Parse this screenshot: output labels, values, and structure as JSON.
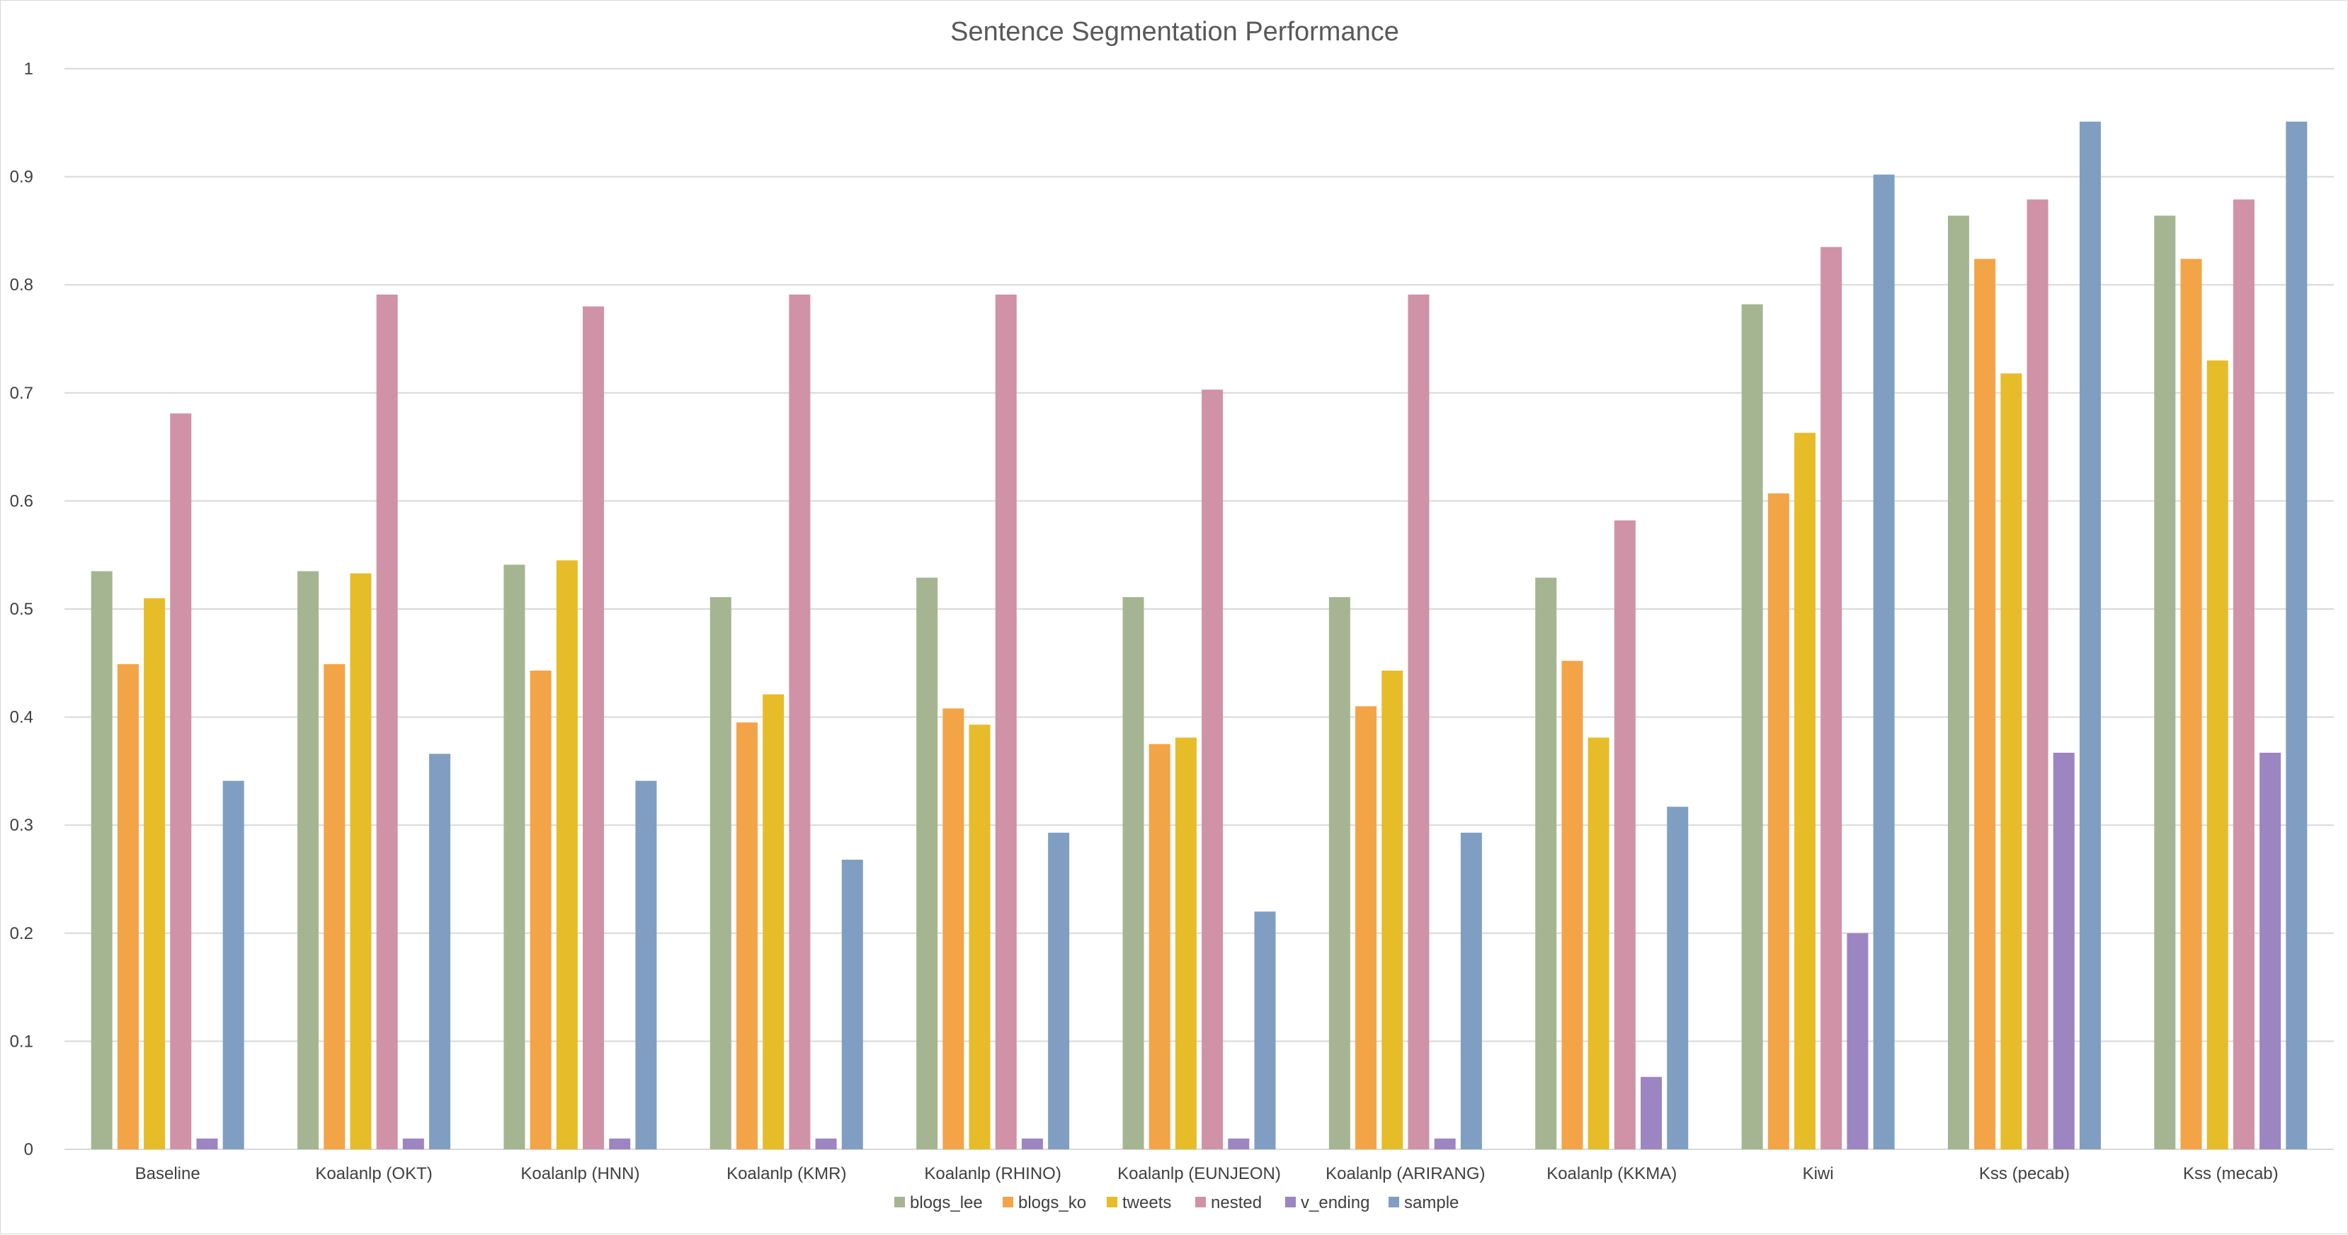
{
  "chart_data": {
    "type": "bar",
    "title": "Sentence Segmentation Performance",
    "xlabel": "",
    "ylabel": "",
    "ylim": [
      0,
      1
    ],
    "y_ticks": [
      "0",
      "0.1",
      "0.2",
      "0.3",
      "0.4",
      "0.5",
      "0.6",
      "0.7",
      "0.8",
      "0.9",
      "1"
    ],
    "grid": true,
    "legend_position": "bottom",
    "categories": [
      "Baseline",
      "Koalanlp (OKT)",
      "Koalanlp (HNN)",
      "Koalanlp (KMR)",
      "Koalanlp (RHINO)",
      "Koalanlp (EUNJEON)",
      "Koalanlp (ARIRANG)",
      "Koalanlp (KKMA)",
      "Kiwi",
      "Kss (pecab)",
      "Kss (mecab)"
    ],
    "series": [
      {
        "name": "blogs_lee",
        "color": "#a5b592",
        "values": [
          0.535,
          0.535,
          0.541,
          0.511,
          0.529,
          0.511,
          0.511,
          0.529,
          0.782,
          0.864,
          0.864
        ]
      },
      {
        "name": "blogs_ko",
        "color": "#f3a447",
        "values": [
          0.449,
          0.449,
          0.443,
          0.395,
          0.408,
          0.375,
          0.41,
          0.452,
          0.607,
          0.824,
          0.824
        ]
      },
      {
        "name": "tweets",
        "color": "#e7bc29",
        "values": [
          0.51,
          0.533,
          0.545,
          0.421,
          0.393,
          0.381,
          0.443,
          0.381,
          0.663,
          0.718,
          0.73
        ]
      },
      {
        "name": "nested",
        "color": "#d092a7",
        "values": [
          0.681,
          0.791,
          0.78,
          0.791,
          0.791,
          0.703,
          0.791,
          0.582,
          0.835,
          0.879,
          0.879
        ]
      },
      {
        "name": "v_ending",
        "color": "#9c85c0",
        "values": [
          0.01,
          0.01,
          0.01,
          0.01,
          0.01,
          0.01,
          0.01,
          0.067,
          0.2,
          0.367,
          0.367
        ]
      },
      {
        "name": "sample",
        "color": "#809ec2",
        "values": [
          0.341,
          0.366,
          0.341,
          0.268,
          0.293,
          0.22,
          0.293,
          0.317,
          0.902,
          0.951,
          0.951
        ]
      }
    ]
  }
}
